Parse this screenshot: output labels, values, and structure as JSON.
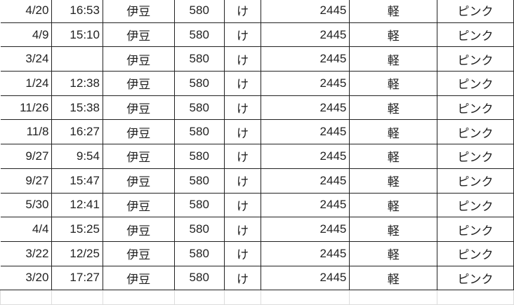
{
  "rows": [
    {
      "date": "4/20",
      "time": "16:53",
      "place": "伊豆",
      "num": "580",
      "kana": "け",
      "code": "2445",
      "type": "軽",
      "color": "ピンク"
    },
    {
      "date": "4/9",
      "time": "15:10",
      "place": "伊豆",
      "num": "580",
      "kana": "け",
      "code": "2445",
      "type": "軽",
      "color": "ピンク"
    },
    {
      "date": "3/24",
      "time": "",
      "place": "伊豆",
      "num": "580",
      "kana": "け",
      "code": "2445",
      "type": "軽",
      "color": "ピンク"
    },
    {
      "date": "1/24",
      "time": "12:38",
      "place": "伊豆",
      "num": "580",
      "kana": "け",
      "code": "2445",
      "type": "軽",
      "color": "ピンク"
    },
    {
      "date": "11/26",
      "time": "15:38",
      "place": "伊豆",
      "num": "580",
      "kana": "け",
      "code": "2445",
      "type": "軽",
      "color": "ピンク"
    },
    {
      "date": "11/8",
      "time": "16:27",
      "place": "伊豆",
      "num": "580",
      "kana": "け",
      "code": "2445",
      "type": "軽",
      "color": "ピンク"
    },
    {
      "date": "9/27",
      "time": "9:54",
      "place": "伊豆",
      "num": "580",
      "kana": "け",
      "code": "2445",
      "type": "軽",
      "color": "ピンク"
    },
    {
      "date": "9/27",
      "time": "15:47",
      "place": "伊豆",
      "num": "580",
      "kana": "け",
      "code": "2445",
      "type": "軽",
      "color": "ピンク"
    },
    {
      "date": "5/30",
      "time": "12:41",
      "place": "伊豆",
      "num": "580",
      "kana": "け",
      "code": "2445",
      "type": "軽",
      "color": "ピンク"
    },
    {
      "date": "4/4",
      "time": "15:25",
      "place": "伊豆",
      "num": "580",
      "kana": "け",
      "code": "2445",
      "type": "軽",
      "color": "ピンク"
    },
    {
      "date": "3/22",
      "time": "12/25",
      "place": "伊豆",
      "num": "580",
      "kana": "け",
      "code": "2445",
      "type": "軽",
      "color": "ピンク"
    },
    {
      "date": "3/20",
      "time": "17:27",
      "place": "伊豆",
      "num": "580",
      "kana": "け",
      "code": "2445",
      "type": "軽",
      "color": "ピンク"
    }
  ]
}
